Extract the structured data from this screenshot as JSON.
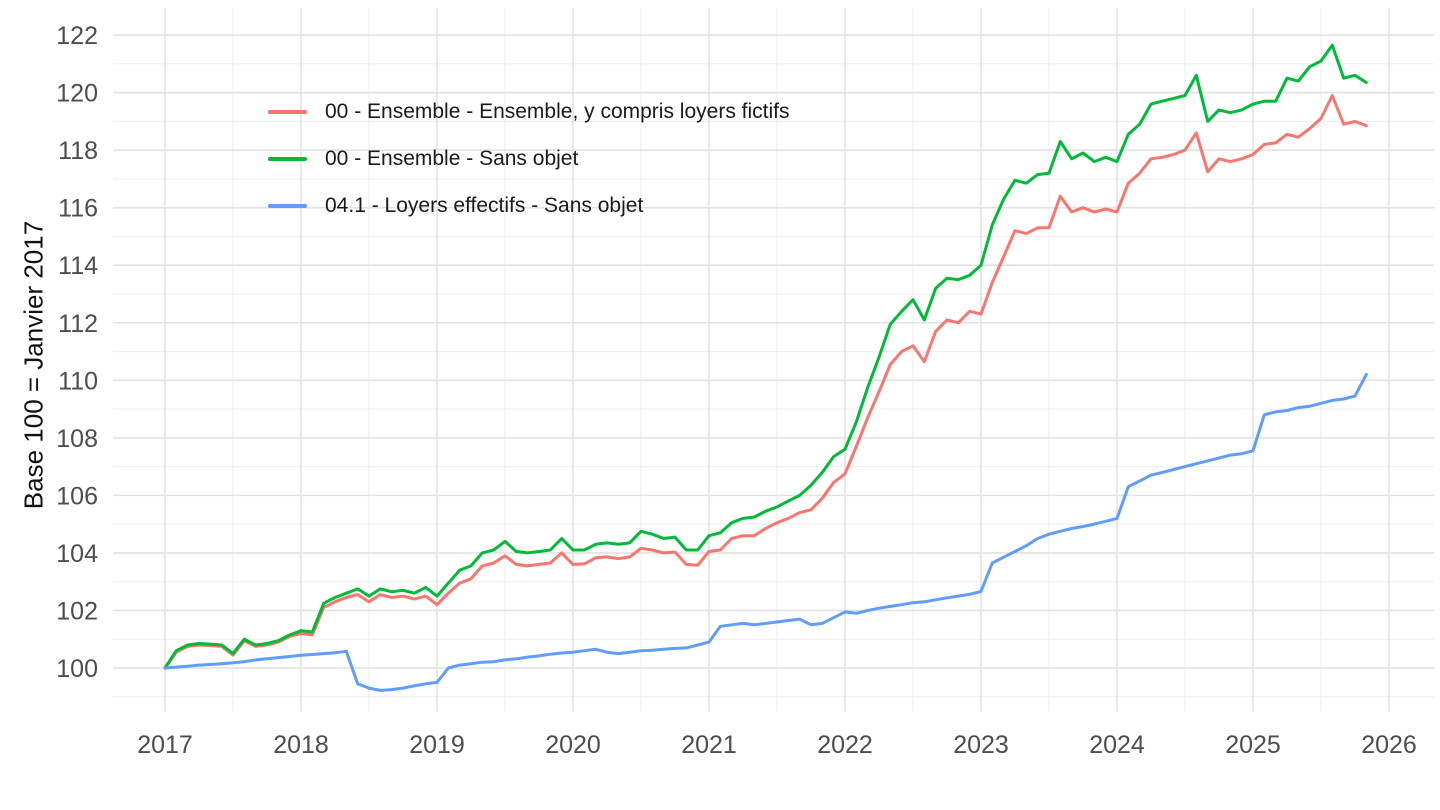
{
  "chart_data": {
    "type": "line",
    "title": "",
    "ylabel": "Base 100 = Janvier 2017",
    "xlabel": "",
    "x_start": "2017-01",
    "x_end": "2025-11",
    "frequency": "monthly",
    "grid": "on",
    "legend_position": "inside-top-left",
    "x_tick_labels": [
      "2017",
      "2018",
      "2019",
      "2020",
      "2021",
      "2022",
      "2023",
      "2024",
      "2025",
      "2026"
    ],
    "y_tick_labels": [
      "100",
      "102",
      "104",
      "106",
      "108",
      "110",
      "112",
      "114",
      "116",
      "118",
      "120",
      "122"
    ],
    "ylim": [
      98.8,
      122.8
    ],
    "colors": {
      "grid_major": "#e2e2e2",
      "grid_minor": "#f0f0f0",
      "tick_text": "#4d4d4d",
      "background": "#ffffff"
    },
    "series": [
      {
        "name": "00 - Ensemble - Ensemble, y compris loyers fictifs",
        "color": "#F8766D",
        "values": [
          100,
          100.55,
          100.75,
          100.8,
          100.78,
          100.75,
          100.45,
          100.95,
          100.75,
          100.8,
          100.9,
          101.1,
          101.2,
          101.15,
          102.1,
          102.3,
          102.45,
          102.55,
          102.3,
          102.55,
          102.45,
          102.5,
          102.4,
          102.5,
          102.2,
          102.6,
          102.95,
          103.1,
          103.55,
          103.65,
          103.9,
          103.6,
          103.55,
          103.6,
          103.65,
          104.0,
          103.6,
          103.62,
          103.83,
          103.86,
          103.8,
          103.86,
          104.16,
          104.1,
          104.0,
          104.03,
          103.6,
          103.57,
          104.05,
          104.1,
          104.5,
          104.6,
          104.6,
          104.85,
          105.05,
          105.2,
          105.4,
          105.5,
          105.9,
          106.45,
          106.75,
          107.7,
          108.7,
          109.6,
          110.55,
          111.0,
          111.2,
          110.65,
          111.7,
          112.1,
          112.0,
          112.4,
          112.3,
          113.4,
          114.3,
          115.2,
          115.1,
          115.3,
          115.3,
          116.4,
          115.85,
          116.0,
          115.85,
          115.95,
          115.85,
          116.85,
          117.2,
          117.7,
          117.75,
          117.85,
          118.0,
          118.6,
          117.25,
          117.7,
          117.6,
          117.7,
          117.85,
          118.2,
          118.25,
          118.55,
          118.45,
          118.75,
          119.1,
          119.9,
          118.9,
          119.0,
          118.85
        ]
      },
      {
        "name": "00 - Ensemble - Sans objet",
        "color": "#00BA38",
        "values": [
          100,
          100.6,
          100.8,
          100.85,
          100.83,
          100.8,
          100.5,
          101.0,
          100.8,
          100.85,
          100.95,
          101.15,
          101.3,
          101.25,
          102.25,
          102.45,
          102.6,
          102.75,
          102.5,
          102.75,
          102.65,
          102.7,
          102.6,
          102.8,
          102.5,
          102.95,
          103.4,
          103.55,
          104.0,
          104.1,
          104.4,
          104.05,
          104.0,
          104.05,
          104.1,
          104.5,
          104.1,
          104.1,
          104.3,
          104.35,
          104.3,
          104.35,
          104.75,
          104.65,
          104.5,
          104.55,
          104.1,
          104.1,
          104.6,
          104.7,
          105.05,
          105.2,
          105.25,
          105.45,
          105.6,
          105.8,
          106.0,
          106.35,
          106.8,
          107.35,
          107.6,
          108.55,
          109.75,
          110.8,
          111.95,
          112.4,
          112.8,
          112.1,
          113.2,
          113.55,
          113.5,
          113.65,
          114.0,
          115.4,
          116.3,
          116.95,
          116.85,
          117.15,
          117.2,
          118.3,
          117.7,
          117.9,
          117.6,
          117.75,
          117.6,
          118.55,
          118.9,
          119.6,
          119.7,
          119.8,
          119.9,
          120.6,
          119.0,
          119.4,
          119.3,
          119.4,
          119.6,
          119.7,
          119.7,
          120.5,
          120.4,
          120.9,
          121.1,
          121.65,
          120.5,
          120.6,
          120.35
        ]
      },
      {
        "name": "04.1 - Loyers effectifs - Sans objet",
        "color": "#619CFF",
        "values": [
          100,
          100.03,
          100.06,
          100.1,
          100.12,
          100.15,
          100.18,
          100.22,
          100.28,
          100.32,
          100.36,
          100.4,
          100.44,
          100.47,
          100.5,
          100.53,
          100.58,
          99.45,
          99.3,
          99.22,
          99.25,
          99.3,
          99.38,
          99.45,
          99.5,
          100.0,
          100.1,
          100.15,
          100.2,
          100.22,
          100.28,
          100.32,
          100.38,
          100.42,
          100.48,
          100.52,
          100.55,
          100.6,
          100.65,
          100.55,
          100.5,
          100.55,
          100.6,
          100.62,
          100.65,
          100.68,
          100.7,
          100.8,
          100.9,
          101.45,
          101.5,
          101.55,
          101.5,
          101.55,
          101.6,
          101.65,
          101.7,
          101.5,
          101.55,
          101.75,
          101.95,
          101.9,
          102.0,
          102.08,
          102.14,
          102.2,
          102.27,
          102.3,
          102.37,
          102.44,
          102.5,
          102.56,
          102.66,
          103.65,
          103.85,
          104.05,
          104.25,
          104.5,
          104.65,
          104.75,
          104.85,
          104.92,
          105.0,
          105.1,
          105.2,
          106.3,
          106.5,
          106.7,
          106.8,
          106.9,
          107.0,
          107.1,
          107.2,
          107.3,
          107.4,
          107.45,
          107.55,
          108.8,
          108.9,
          108.95,
          109.05,
          109.1,
          109.2,
          109.3,
          109.35,
          109.45,
          110.2
        ]
      }
    ]
  }
}
